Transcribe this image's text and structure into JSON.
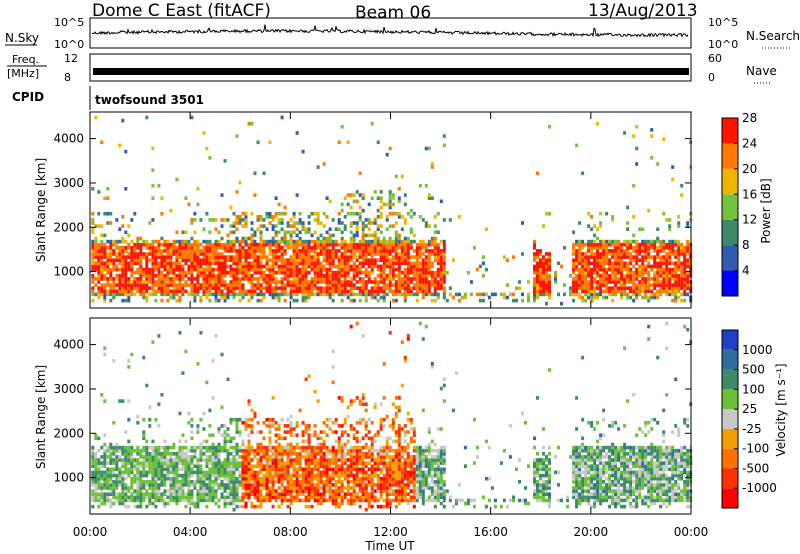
{
  "header": {
    "station": "Dome C East (fitACF)",
    "beam": "Beam 06",
    "date": "13/Aug/2013"
  },
  "top_panels": {
    "nsky_label": "N.Sky",
    "nsearch_label": "N.Search",
    "nsky_ticks": [
      "10^5",
      "10^0"
    ],
    "freq_label_1": "Freq.",
    "freq_label_2": "[MHz]",
    "freq_ticks": [
      "12",
      "8"
    ],
    "nave_label": "Nave",
    "nave_ticks": [
      "60",
      "0"
    ],
    "cpid_label": "CPID",
    "cpid_value": "twofsound 3501"
  },
  "chart_data": [
    {
      "type": "heatmap",
      "name": "power",
      "ylabel": "Slant Range [km]",
      "ylim": [
        180,
        4600
      ],
      "yticks": [
        "1000",
        "2000",
        "3000",
        "4000"
      ],
      "xlim": [
        0,
        24
      ],
      "colorbar_label": "Power [dB]",
      "colorbar_ticks": [
        "4",
        "8",
        "12",
        "16",
        "20",
        "24",
        "28"
      ],
      "colorbar_colors": [
        "#0000ff",
        "#2f5bb0",
        "#3c8a6a",
        "#72c23c",
        "#f0b400",
        "#ff7800",
        "#ff1400"
      ],
      "scatter_levels": [
        {
          "range_km": 1000,
          "value": 28
        },
        {
          "range_km": 1800,
          "value": 16
        },
        {
          "range_km": 2300,
          "value": 12
        },
        {
          "range_km": 4000,
          "value": 8
        }
      ]
    },
    {
      "type": "heatmap",
      "name": "velocity",
      "ylabel": "Slant Range [km]",
      "ylim": [
        180,
        4600
      ],
      "yticks": [
        "1000",
        "2000",
        "3000",
        "4000"
      ],
      "xlim": [
        0,
        24
      ],
      "xticks": [
        "00:00",
        "04:00",
        "08:00",
        "12:00",
        "16:00",
        "20:00",
        "00:00"
      ],
      "xlabel": "Time UT",
      "colorbar_label": "Velocity [m s⁻¹]",
      "colorbar_ticks": [
        "1000",
        "500",
        "100",
        "25",
        "-25",
        "-100",
        "-500",
        "-1000"
      ],
      "colorbar_colors": [
        "#1f3fc8",
        "#2f6ca0",
        "#3d8a6a",
        "#6cc03a",
        "#c8c8c8",
        "#f0a000",
        "#ff7000",
        "#ff3000",
        "#ff0000"
      ]
    }
  ]
}
